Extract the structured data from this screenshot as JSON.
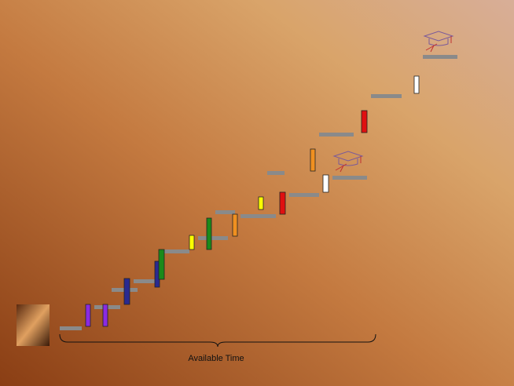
{
  "axis_label": "Available Time"
}
